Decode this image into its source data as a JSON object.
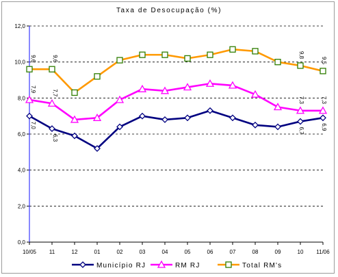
{
  "chart_data": {
    "type": "line",
    "title": "Taxa de Desocupação (%)",
    "categories": [
      "10/05",
      "11",
      "12",
      "01",
      "02",
      "03",
      "04",
      "05",
      "06",
      "07",
      "08",
      "09",
      "10",
      "11/06"
    ],
    "y_ticks": [
      "0,0",
      "2,0",
      "4,0",
      "6,0",
      "8,0",
      "10,0",
      "12,0"
    ],
    "ylim": [
      0,
      12
    ],
    "grid": true,
    "legend_position": "bottom",
    "series": [
      {
        "name": "Município RJ",
        "color": "#000080",
        "marker": "diamond",
        "values": [
          7.0,
          6.3,
          5.9,
          5.2,
          6.4,
          7.0,
          6.8,
          6.9,
          7.3,
          6.9,
          6.5,
          6.4,
          6.7,
          6.9
        ],
        "labels": [
          {
            "index": 0,
            "text": "7,0"
          },
          {
            "index": 1,
            "text": "6,3"
          },
          {
            "index": 12,
            "text": "6,7"
          },
          {
            "index": 13,
            "text": "6,9"
          }
        ]
      },
      {
        "name": "RM RJ",
        "color": "#ff00ff",
        "marker": "triangle",
        "values": [
          7.9,
          7.7,
          6.8,
          6.9,
          7.9,
          8.5,
          8.4,
          8.6,
          8.8,
          8.7,
          8.2,
          7.5,
          7.3,
          7.3
        ],
        "labels": [
          {
            "index": 0,
            "text": "7,9"
          },
          {
            "index": 1,
            "text": "7,7"
          },
          {
            "index": 12,
            "text": "7,3"
          },
          {
            "index": 13,
            "text": "7,3"
          }
        ]
      },
      {
        "name": "Total RM's",
        "color": "#ff9900",
        "marker": "square",
        "values": [
          9.6,
          9.6,
          8.3,
          9.2,
          10.1,
          10.4,
          10.4,
          10.2,
          10.4,
          10.7,
          10.6,
          10.0,
          9.8,
          9.5
        ],
        "labels": [
          {
            "index": 0,
            "text": "9,6"
          },
          {
            "index": 1,
            "text": "9,6"
          },
          {
            "index": 12,
            "text": "9,8"
          },
          {
            "index": 13,
            "text": "9,5"
          }
        ]
      }
    ]
  }
}
